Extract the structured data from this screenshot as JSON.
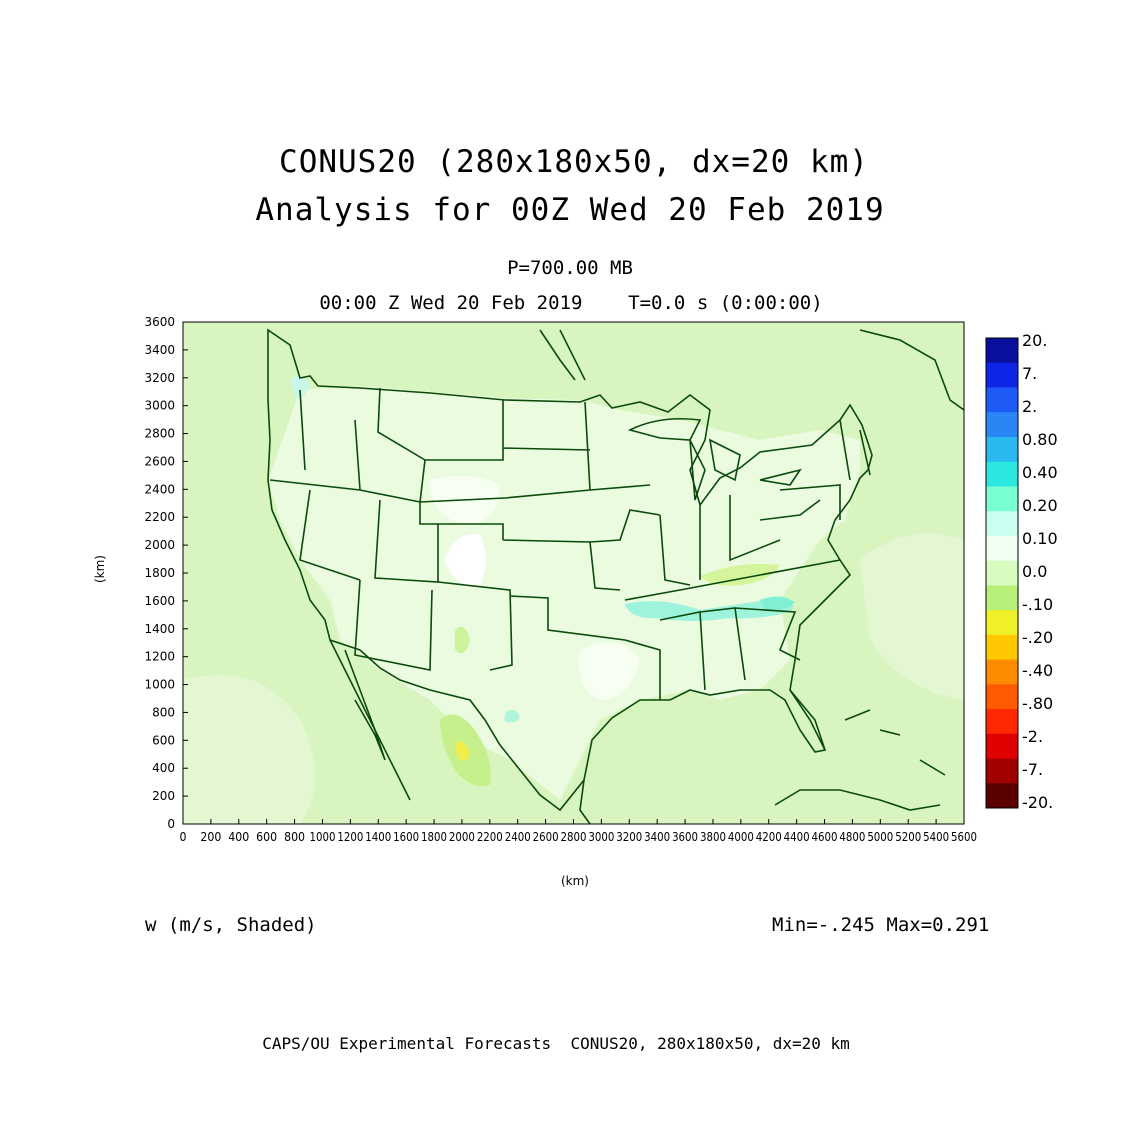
{
  "title": {
    "line1": "CONUS20 (280x180x50, dx=20 km)",
    "line2": "Analysis for 00Z Wed 20 Feb 2019",
    "level": "P=700.00 MB",
    "time": "00:00 Z Wed 20 Feb 2019    T=0.0 s (0:00:00)"
  },
  "field_label": "w (m/s, Shaded)",
  "min_max": "Min=-.245 Max=0.291",
  "footer": "CAPS/OU Experimental Forecasts  CONUS20, 280x180x50, dx=20 km",
  "axes": {
    "xlabel": "(km)",
    "ylabel": "(km)",
    "x_range": [
      0,
      5600
    ],
    "y_range": [
      0,
      3600
    ],
    "x_ticks": [
      "0",
      "200",
      "400",
      "600",
      "800",
      "1000",
      "1200",
      "1400",
      "1600",
      "1800",
      "2000",
      "2200",
      "2400",
      "2600",
      "2800",
      "3000",
      "3200",
      "3400",
      "3600",
      "3800",
      "4000",
      "4200",
      "4400",
      "4600",
      "4800",
      "5000",
      "5200",
      "5400",
      "5600"
    ],
    "y_ticks": [
      "0",
      "200",
      "400",
      "600",
      "800",
      "1000",
      "1200",
      "1400",
      "1600",
      "1800",
      "2000",
      "2200",
      "2400",
      "2600",
      "2800",
      "3000",
      "3200",
      "3400",
      "3600"
    ]
  },
  "colorbar": {
    "labels": [
      "20.",
      "7.",
      "2.",
      "0.80",
      "0.40",
      "0.20",
      "0.10",
      "0.0",
      "-.10",
      "-.20",
      "-.40",
      "-.80",
      "-2.",
      "-7.",
      "-20."
    ],
    "colors": [
      "#0a0f9e",
      "#0f26e6",
      "#1e5af5",
      "#2a86f5",
      "#29b8f0",
      "#2ae8e0",
      "#7affd2",
      "#c8fff0",
      "#f0fff0",
      "#d8fcc0",
      "#b6f07a",
      "#f0f028",
      "#ffc800",
      "#ff8c00",
      "#ff5a00",
      "#ff2800",
      "#e00000",
      "#a00000",
      "#5a0000"
    ]
  },
  "colors": {
    "map_background": "#d8f5c0",
    "land_light": "#ebfbe0",
    "border": "#0a4a0a"
  }
}
